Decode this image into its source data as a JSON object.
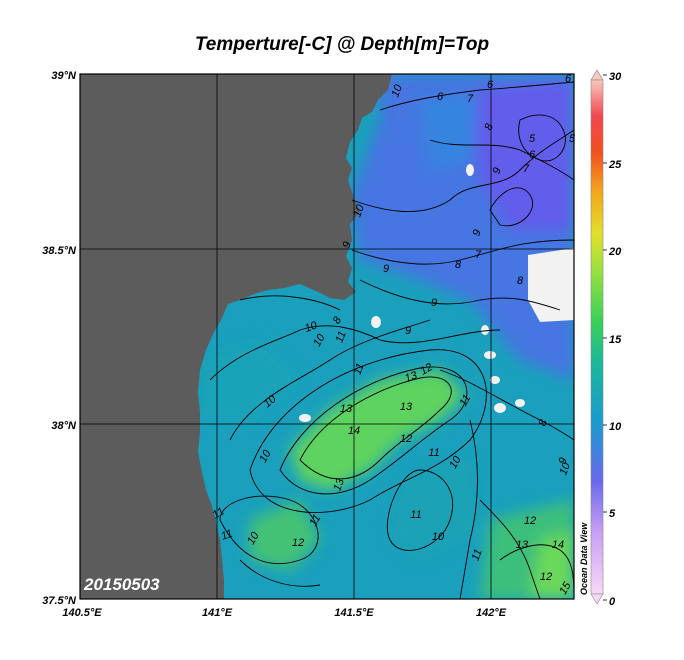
{
  "title": "Temperture[-C] @ Depth[m]=Top",
  "date_label": "20150503",
  "watermark": "Ocean Data View",
  "axes": {
    "lat_ticks": [
      "39°N",
      "38.5°N",
      "38°N",
      "37.5°N"
    ],
    "lon_ticks": [
      "140.5°E",
      "141°E",
      "141.5°E",
      "142°E"
    ]
  },
  "colorbar": {
    "ticks": [
      "30",
      "25",
      "20",
      "15",
      "10",
      "5",
      "0"
    ],
    "min": 0,
    "max": 30
  },
  "contour_labels": [
    "10",
    "6",
    "7",
    "8",
    "9",
    "6",
    "5",
    "6",
    "5",
    "7",
    "6",
    "9",
    "7",
    "8",
    "8",
    "10",
    "9",
    "9",
    "9",
    "10",
    "10",
    "11",
    "8",
    "9",
    "13",
    "12",
    "11",
    "10",
    "13",
    "14",
    "13",
    "12",
    "11",
    "11",
    "10",
    "10",
    "13",
    "11",
    "8",
    "9",
    "11",
    "11",
    "10",
    "12",
    "11",
    "10",
    "11",
    "12",
    "13",
    "14",
    "12",
    "15",
    "10"
  ],
  "colors": {
    "land": "#5c5c5c",
    "no_data": "#f3f3f3",
    "cool_water": "#4f73e6",
    "mid_water": "#1aa3b5",
    "warm_water": "#5fd35e"
  }
}
